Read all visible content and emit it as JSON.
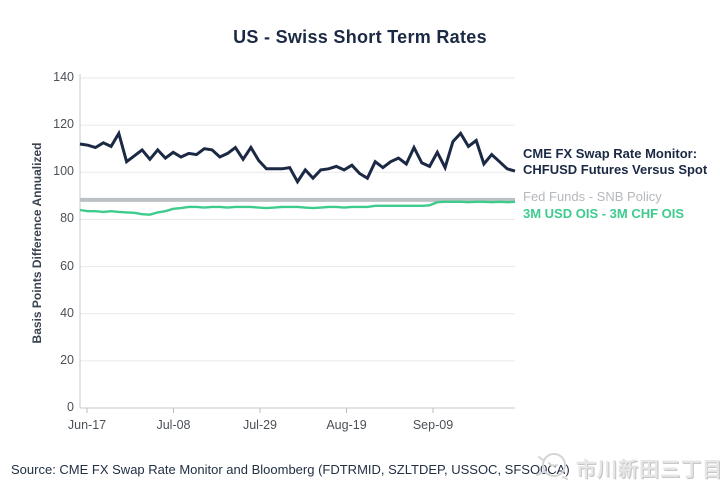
{
  "title": "US - Swiss Short Term Rates",
  "legend": {
    "series1_line1": "CME FX Swap Rate Monitor:",
    "series1_line2": "CHFUSD Futures Versus Spot",
    "series2": "Fed Funds - SNB Policy",
    "series3": "3M USD OIS - 3M CHF OIS"
  },
  "source": "Source: CME FX Swap Rate Monitor and Bloomberg (FDTRMID, SZLTDEP, USSOC, SFSO0CA)",
  "watermark": {
    "icon": "sketch-stamp-icon",
    "text": "市川新田三丁目"
  },
  "colors": {
    "navy": "#1b2944",
    "green": "#3ecb8e",
    "gray_line": "#bdc0c3",
    "grid": "#e9eaeb",
    "axis": "#c6c9cc"
  },
  "chart_data": {
    "type": "line",
    "title": "US - Swiss Short Term Rates",
    "xlabel": "",
    "ylabel": "Basis Points Difference Annualized",
    "ylim": [
      0,
      140
    ],
    "y_ticks": [
      0,
      20,
      40,
      60,
      80,
      100,
      120,
      140
    ],
    "x_ticks": [
      "Jun-17",
      "Jul-08",
      "Jul-29",
      "Aug-19",
      "Sep-09"
    ],
    "grid": "horizontal",
    "legend_position": "right",
    "series": [
      {
        "name": "CME FX Swap Rate Monitor: CHFUSD Futures Versus Spot",
        "color": "#1b2944",
        "width": 3,
        "values": [
          112,
          111.5,
          110.5,
          112.5,
          111,
          116.5,
          104.5,
          107,
          109.5,
          105.5,
          109.5,
          106,
          108.5,
          106.5,
          108,
          107.5,
          110,
          109.5,
          106.5,
          108,
          110.5,
          105.5,
          110.5,
          105,
          101.5,
          101.5,
          101.5,
          102,
          96,
          101,
          97.5,
          101,
          101.5,
          102.5,
          101,
          103,
          99.5,
          97.5,
          104.5,
          102,
          104.5,
          106,
          103.5,
          110.5,
          104,
          102.5,
          108.5,
          102,
          113,
          116.5,
          111,
          113.5,
          103.5,
          107.5,
          104.5,
          101.5,
          100.5
        ]
      },
      {
        "name": "Fed Funds - SNB Policy",
        "color": "#bdc0c3",
        "width": 4,
        "values": [
          88.3,
          88.3
        ]
      },
      {
        "name": "3M USD OIS - 3M CHF OIS",
        "color": "#3ecb8e",
        "width": 2.4,
        "values": [
          84,
          83.5,
          83.5,
          83.2,
          83.5,
          83.2,
          83,
          82.8,
          82.2,
          82,
          83,
          83.5,
          84.5,
          84.8,
          85.3,
          85.3,
          85,
          85.3,
          85.3,
          85,
          85.3,
          85.3,
          85.3,
          85,
          84.8,
          85,
          85.3,
          85.3,
          85.3,
          85,
          84.8,
          85,
          85.3,
          85.3,
          85,
          85.3,
          85.3,
          85.3,
          85.8,
          85.8,
          85.8,
          85.8,
          85.8,
          85.8,
          85.8,
          86,
          87.3,
          87.5,
          87.5,
          87.5,
          87.3,
          87.5,
          87.5,
          87.3,
          87.5,
          87.3,
          87.5
        ]
      }
    ]
  }
}
